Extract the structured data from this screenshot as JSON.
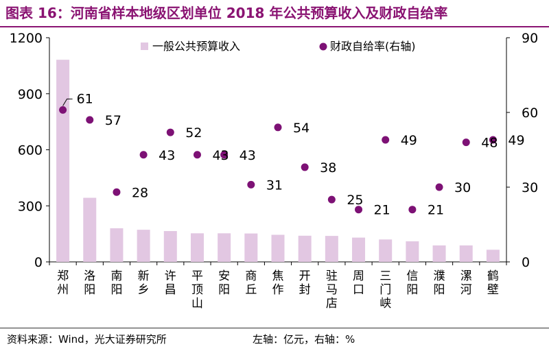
{
  "title": "图表 16：河南省样本地级区划单位 2018 年公共预算收入及财政自给率",
  "footer": {
    "source": "资料来源：Wind，光大证券研究所",
    "units": "左轴：亿元，右轴：%"
  },
  "colors": {
    "bar": "#e2c7e2",
    "dot": "#7d1175",
    "title": "#8a1372"
  },
  "chart_data": {
    "type": "bar",
    "categories": [
      "郑州",
      "洛阳",
      "南阳",
      "新乡",
      "许昌",
      "平顶山",
      "安阳",
      "商丘",
      "焦作",
      "开封",
      "驻马店",
      "周口",
      "三门峡",
      "信阳",
      "濮阳",
      "漯河",
      "鹤壁"
    ],
    "series": [
      {
        "name": "一般公共预算收入",
        "type": "bar",
        "axis": "left",
        "values": [
          1082,
          343,
          180,
          172,
          165,
          153,
          153,
          152,
          145,
          140,
          139,
          130,
          120,
          110,
          88,
          88,
          65
        ]
      },
      {
        "name": "财政自给率(右轴)",
        "type": "scatter",
        "axis": "right",
        "values": [
          61,
          57,
          28,
          43,
          52,
          43,
          43,
          31,
          54,
          38,
          25,
          21,
          49,
          21,
          30,
          48,
          49
        ]
      }
    ],
    "ylim_left": [
      0,
      1200
    ],
    "yticks_left": [
      0,
      300,
      600,
      900,
      1200
    ],
    "ylim_right": [
      0,
      90
    ],
    "yticks_right": [
      0,
      30,
      60,
      90
    ],
    "legend": "top",
    "grid": false
  }
}
